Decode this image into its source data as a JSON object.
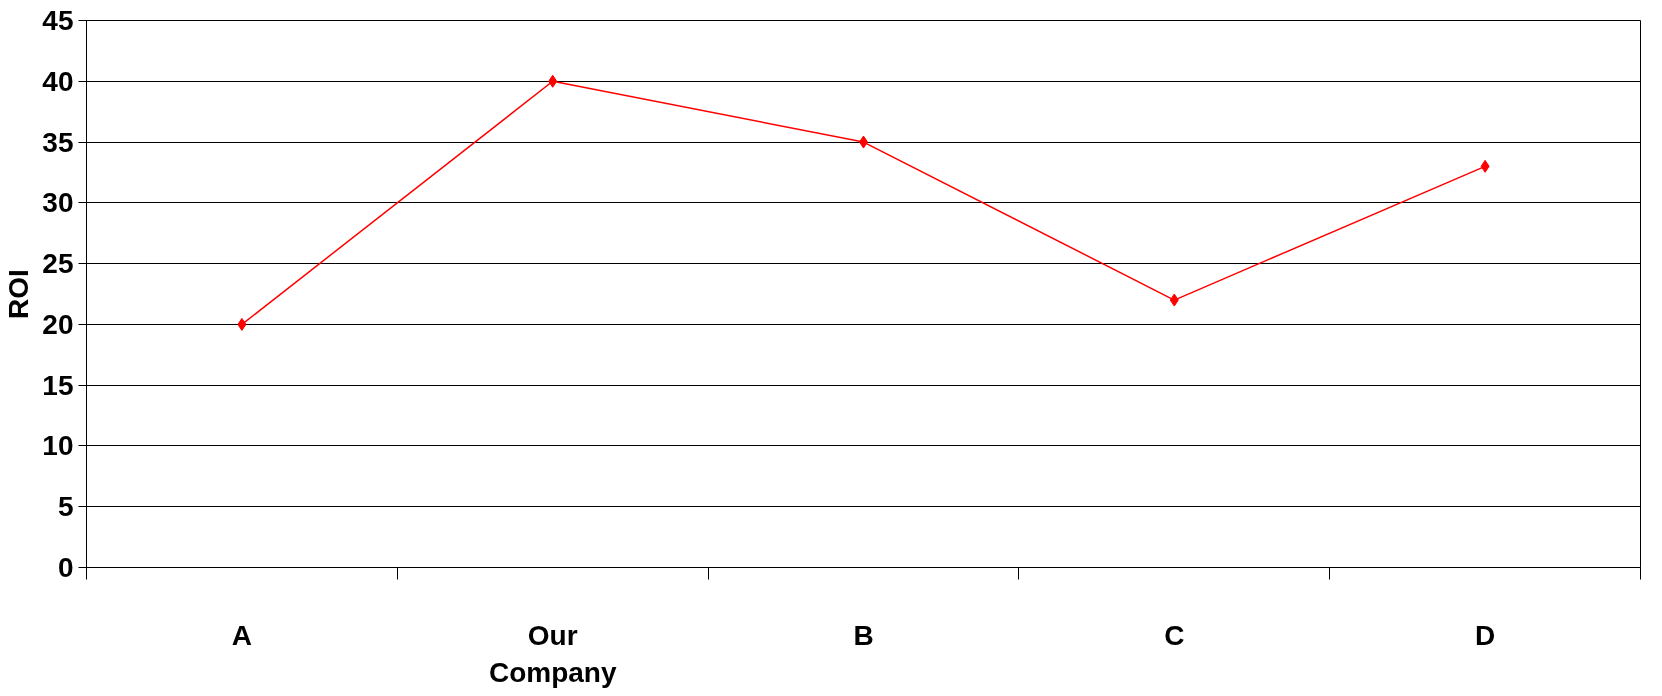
{
  "chart_data": {
    "type": "line",
    "ylabel": "ROI",
    "categories": [
      "A",
      "Our Company",
      "B",
      "C",
      "D"
    ],
    "series": [
      {
        "color": "#ff0000",
        "values": [
          20,
          40,
          35,
          22,
          33
        ]
      }
    ],
    "ylim": [
      0,
      45
    ],
    "yticks": [
      0,
      5,
      10,
      15,
      20,
      25,
      30,
      35,
      40,
      45
    ],
    "grid": "y",
    "marker": "diamond",
    "line_style": "solid"
  }
}
